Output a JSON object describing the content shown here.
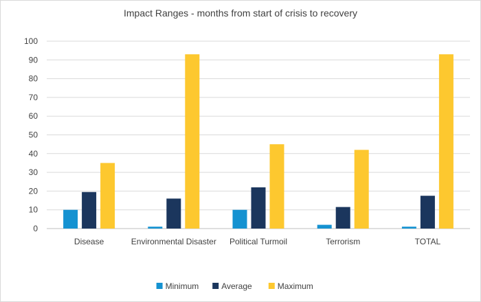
{
  "chart_data": {
    "type": "bar",
    "title": "Impact Ranges - months from start of crisis to recovery",
    "xlabel": "",
    "ylabel": "",
    "categories": [
      "Disease",
      "Environmental Disaster",
      "Political Turmoil",
      "Terrorism",
      "TOTAL"
    ],
    "series": [
      {
        "name": "Minimum",
        "color": "#1592d1",
        "values": [
          10,
          1,
          10,
          2,
          1
        ]
      },
      {
        "name": "Average",
        "color": "#1b365d",
        "values": [
          19.5,
          16,
          22,
          11.5,
          17.5
        ]
      },
      {
        "name": "Maximum",
        "color": "#fdc82f",
        "values": [
          35,
          93,
          45,
          42,
          93
        ]
      }
    ],
    "ylim": [
      0,
      100
    ],
    "yticks": [
      0,
      10,
      20,
      30,
      40,
      50,
      60,
      70,
      80,
      90,
      100
    ],
    "grid": true,
    "legend_position": "bottom-center"
  }
}
